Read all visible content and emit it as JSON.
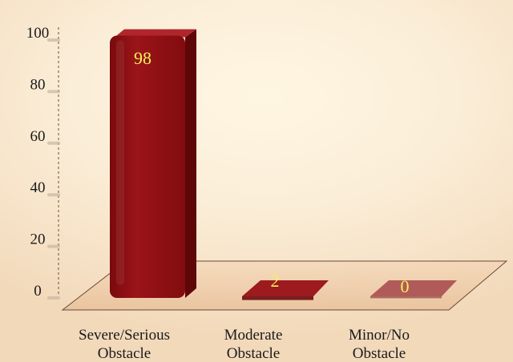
{
  "chart_data": {
    "type": "bar",
    "categories": [
      "Severe/Serious Obstacle",
      "Moderate Obstacle",
      "Minor/No Obstacle"
    ],
    "category_lines": [
      [
        "Severe/Serious",
        "Obstacle"
      ],
      [
        "Moderate",
        "Obstacle"
      ],
      [
        "Minor/No",
        "Obstacle"
      ]
    ],
    "values": [
      98,
      2,
      0
    ],
    "data_labels": [
      "98",
      "2",
      "0"
    ],
    "ylim": [
      0,
      100
    ],
    "yticks": [
      0,
      20,
      40,
      60,
      80,
      100
    ],
    "grid": false,
    "legend": "none",
    "bar_style": "3d-rounded",
    "colors": {
      "bar_front": "#8e0f12",
      "bar_side": "#5e0709",
      "bar_top": "#b0262a",
      "data_label": "#f4f25a",
      "floor": "#e9c29e"
    }
  }
}
